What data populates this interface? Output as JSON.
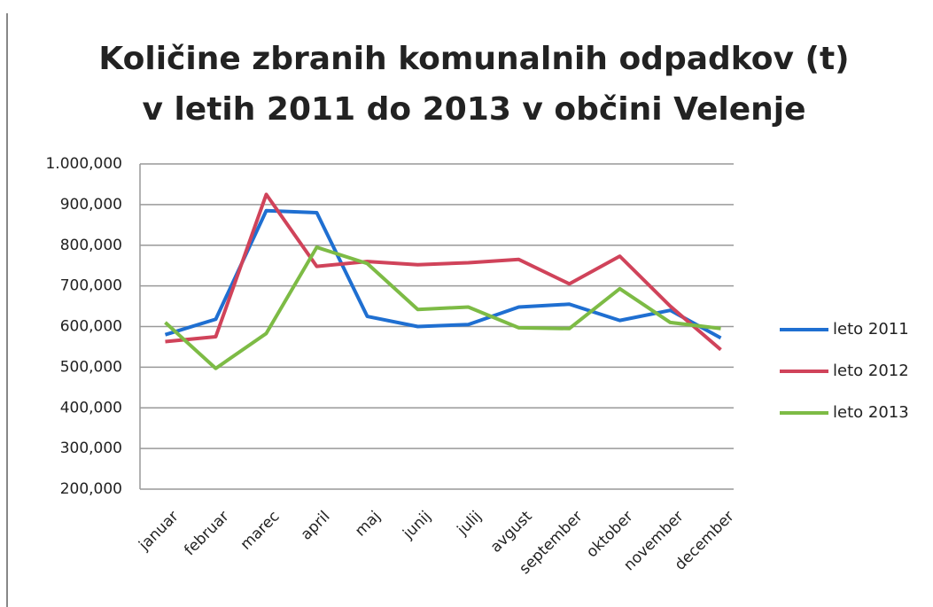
{
  "chart_data": {
    "type": "line",
    "title": "Količine zbranih komunalnih odpadkov (t)",
    "subtitle": "v letih 2011 do 2013 v občini Velenje",
    "categories": [
      "januar",
      "februar",
      "marec",
      "april",
      "maj",
      "junij",
      "julij",
      "avgust",
      "september",
      "oktober",
      "november",
      "december"
    ],
    "series": [
      {
        "name": "leto 2011",
        "color": "#1f6fd1",
        "values": [
          580,
          618,
          885,
          880,
          625,
          600,
          605,
          648,
          655,
          615,
          640,
          572
        ]
      },
      {
        "name": "leto 2012",
        "color": "#d0435a",
        "values": [
          563,
          575,
          925,
          748,
          760,
          752,
          757,
          765,
          705,
          773,
          650,
          543
        ]
      },
      {
        "name": "leto 2013",
        "color": "#7dbb45",
        "values": [
          610,
          497,
          583,
          795,
          755,
          642,
          648,
          597,
          595,
          693,
          610,
          595
        ]
      }
    ],
    "ylim": [
      200,
      1000
    ],
    "yticks": [
      {
        "value": 200,
        "label": "200,000"
      },
      {
        "value": 300,
        "label": "300,000"
      },
      {
        "value": 400,
        "label": "400,000"
      },
      {
        "value": 500,
        "label": "500,000"
      },
      {
        "value": 600,
        "label": "600,000"
      },
      {
        "value": 700,
        "label": "700,000"
      },
      {
        "value": 800,
        "label": "800,000"
      },
      {
        "value": 900,
        "label": "900,000"
      },
      {
        "value": 1000,
        "label": "1.000,000"
      }
    ],
    "grid": true,
    "legend": "right"
  }
}
